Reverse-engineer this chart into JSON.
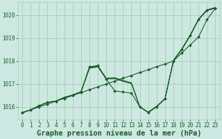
{
  "background_color": "#cce8e0",
  "grid_color": "#aaccbb",
  "line_color": "#1a5c2a",
  "xlabel": "Graphe pression niveau de la mer (hPa)",
  "xlabel_fontsize": 7.5,
  "xlim": [
    -0.5,
    23.5
  ],
  "ylim": [
    1015.45,
    1020.55
  ],
  "yticks": [
    1016,
    1017,
    1018,
    1019,
    1020
  ],
  "xticks": [
    0,
    1,
    2,
    3,
    4,
    5,
    6,
    7,
    8,
    9,
    10,
    11,
    12,
    13,
    14,
    15,
    16,
    17,
    18,
    19,
    20,
    21,
    22,
    23
  ],
  "straight_line": [
    1015.75,
    1015.87,
    1016.0,
    1016.12,
    1016.25,
    1016.37,
    1016.5,
    1016.62,
    1016.75,
    1016.87,
    1017.0,
    1017.12,
    1017.25,
    1017.37,
    1017.5,
    1017.62,
    1017.75,
    1017.87,
    1018.0,
    1018.35,
    1018.7,
    1019.05,
    1019.8,
    1020.3
  ],
  "wobbly_line": [
    1015.75,
    1015.87,
    1016.05,
    1016.2,
    1016.25,
    1016.4,
    1016.5,
    1016.65,
    1017.75,
    1017.8,
    1017.2,
    1016.7,
    1016.65,
    1016.6,
    1016.0,
    1015.75,
    1016.0,
    1016.35,
    1018.0,
    1018.5,
    1019.1,
    1019.8,
    1020.2,
    1020.3
  ],
  "bundle_lines": [
    [
      1015.75,
      1015.87,
      1016.05,
      1016.2,
      1016.25,
      1016.42,
      1016.52,
      1016.67,
      1017.72,
      1017.78,
      1017.25,
      1017.27,
      1017.15,
      1017.05,
      1016.0,
      1015.77,
      1016.03,
      1016.37,
      1018.03,
      1018.53,
      1019.13,
      1019.83,
      1020.23,
      1020.33
    ],
    [
      1015.75,
      1015.87,
      1016.05,
      1016.2,
      1016.25,
      1016.41,
      1016.51,
      1016.66,
      1017.7,
      1017.76,
      1017.23,
      1017.25,
      1017.13,
      1017.03,
      1016.0,
      1015.77,
      1016.02,
      1016.36,
      1018.02,
      1018.52,
      1019.12,
      1019.82,
      1020.22,
      1020.32
    ],
    [
      1015.75,
      1015.87,
      1016.05,
      1016.2,
      1016.25,
      1016.4,
      1016.5,
      1016.65,
      1017.68,
      1017.74,
      1017.21,
      1017.23,
      1017.11,
      1017.01,
      1016.0,
      1015.77,
      1016.01,
      1016.35,
      1018.01,
      1018.51,
      1019.11,
      1019.81,
      1020.21,
      1020.31
    ]
  ]
}
